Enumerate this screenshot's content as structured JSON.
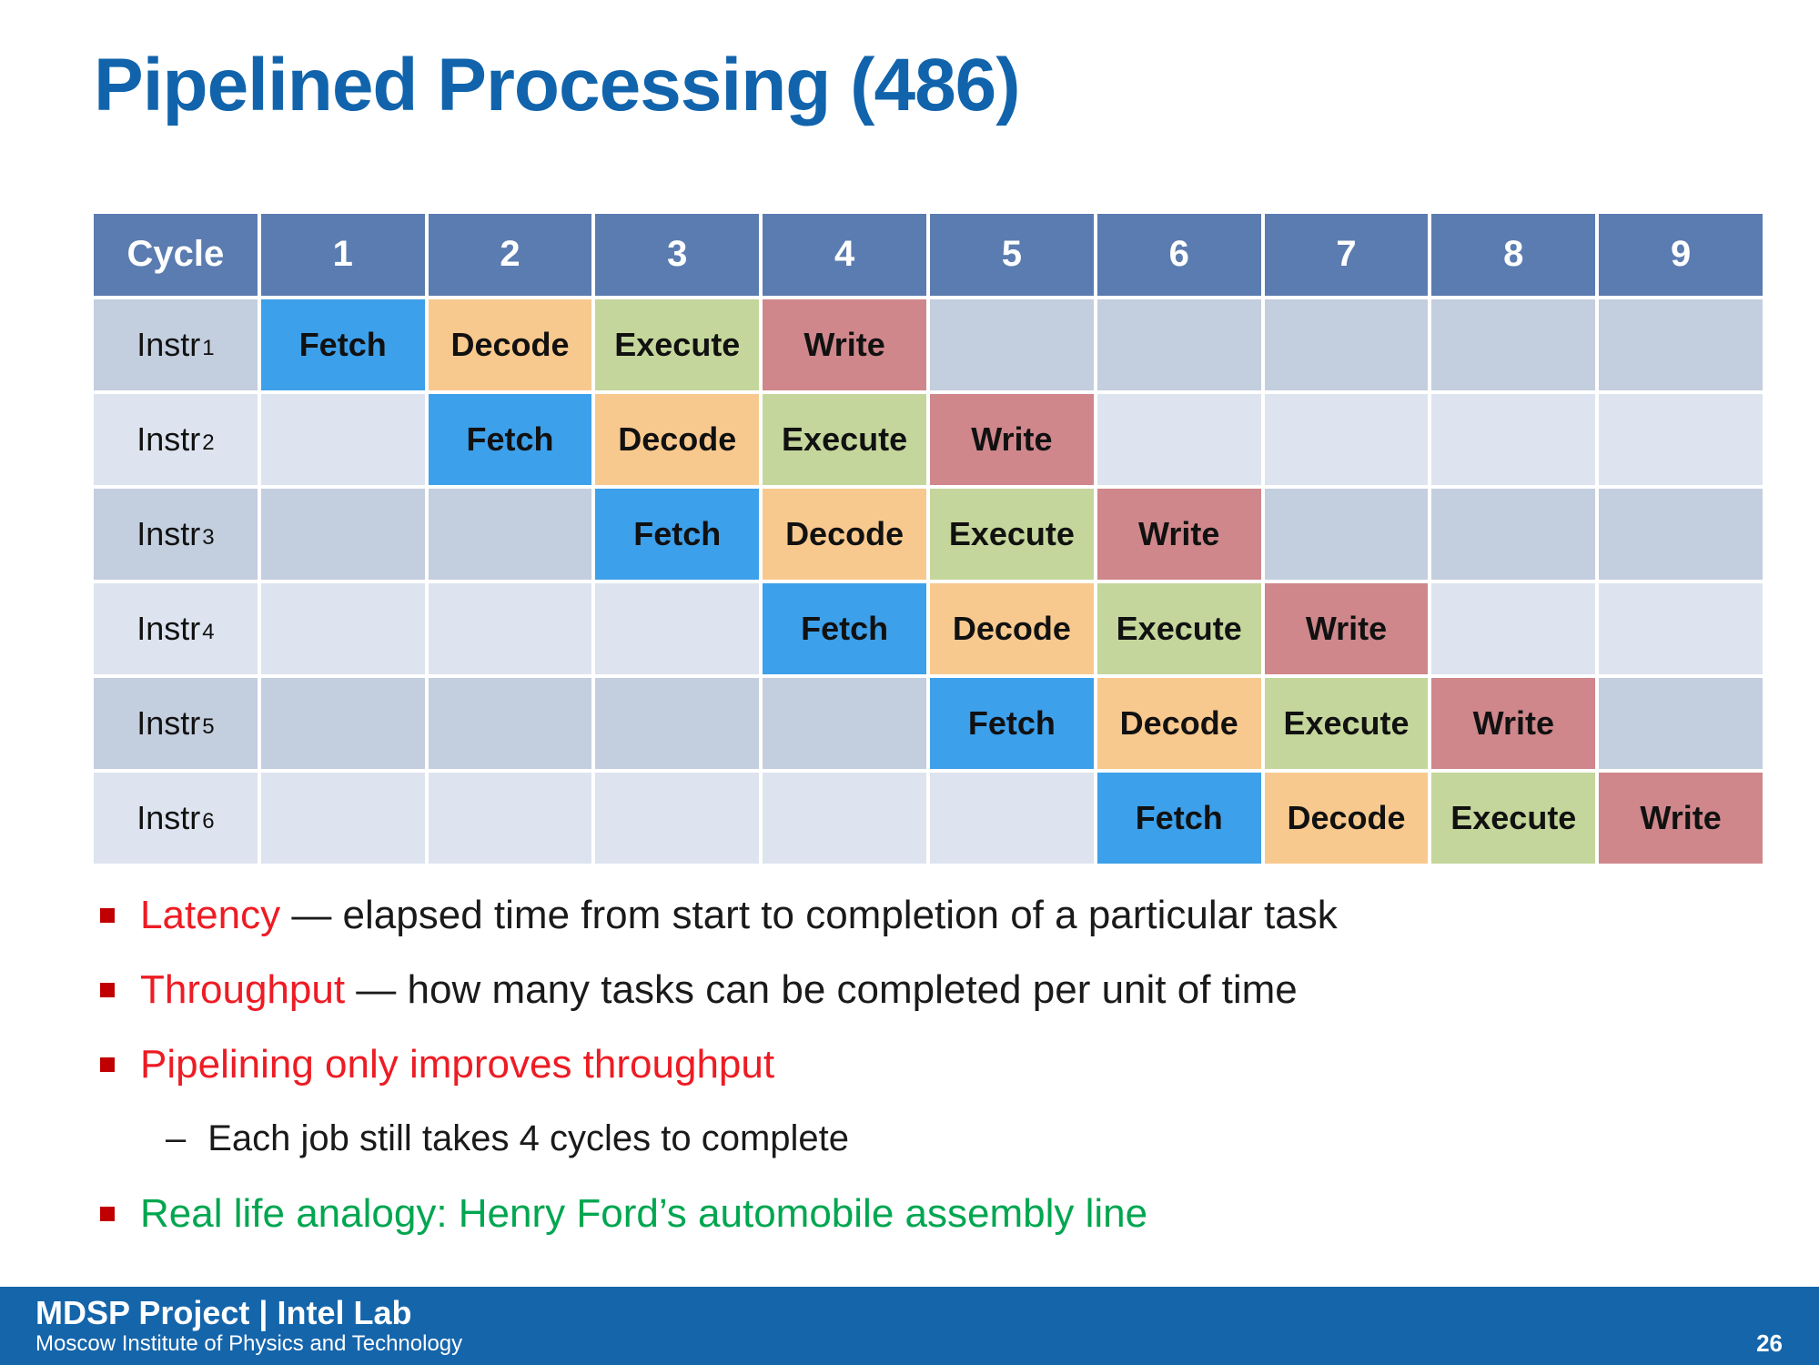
{
  "title": "Pipelined Processing (486)",
  "table": {
    "header": [
      "Cycle",
      "1",
      "2",
      "3",
      "4",
      "5",
      "6",
      "7",
      "8",
      "9"
    ],
    "stages": [
      "Fetch",
      "Decode",
      "Execute",
      "Write"
    ],
    "stage_colors": {
      "Fetch": "#3da0ea",
      "Decode": "#f8c98e",
      "Execute": "#c4d69b",
      "Write": "#cf878b"
    },
    "rows": [
      {
        "label_base": "Instr",
        "label_sub": "1",
        "fetch_cycle": 1
      },
      {
        "label_base": "Instr",
        "label_sub": "2",
        "fetch_cycle": 2
      },
      {
        "label_base": "Instr",
        "label_sub": "3",
        "fetch_cycle": 3
      },
      {
        "label_base": "Instr",
        "label_sub": "4",
        "fetch_cycle": 4
      },
      {
        "label_base": "Instr",
        "label_sub": "5",
        "fetch_cycle": 5
      },
      {
        "label_base": "Instr",
        "label_sub": "6",
        "fetch_cycle": 6
      }
    ]
  },
  "bullets": [
    {
      "lead": "Latency",
      "rest": " — elapsed time from start to completion of a particular task",
      "lead_color": "red"
    },
    {
      "lead": "Throughput",
      "rest": " — how many tasks can be completed per unit of time",
      "lead_color": "red"
    },
    {
      "lead": "Pipelining only improves throughput",
      "lead_color": "red"
    },
    {
      "marker": "–",
      "lead": "Each job still takes 4 cycles to complete",
      "lead_color": "black"
    },
    {
      "lead": "Real life analogy: Henry Ford’s automobile assembly line",
      "lead_color": "green"
    }
  ],
  "footer": {
    "title": "MDSP Project | Intel Lab",
    "subtitle": "Moscow Institute of Physics and Technology",
    "page": "26"
  },
  "colors": {
    "title_blue": "#1164ac",
    "header_blue": "#5b7cb0",
    "row_dark": "#c3cede",
    "row_light": "#dde4ef",
    "fetch": "#3da0ea",
    "decode": "#f8c98e",
    "execute": "#c4d69b",
    "write": "#cf878b",
    "bullet_red": "#ed1c24",
    "bullet_green": "#00a650",
    "marker_red": "#c00000",
    "footer_blue": "#1565ab"
  }
}
